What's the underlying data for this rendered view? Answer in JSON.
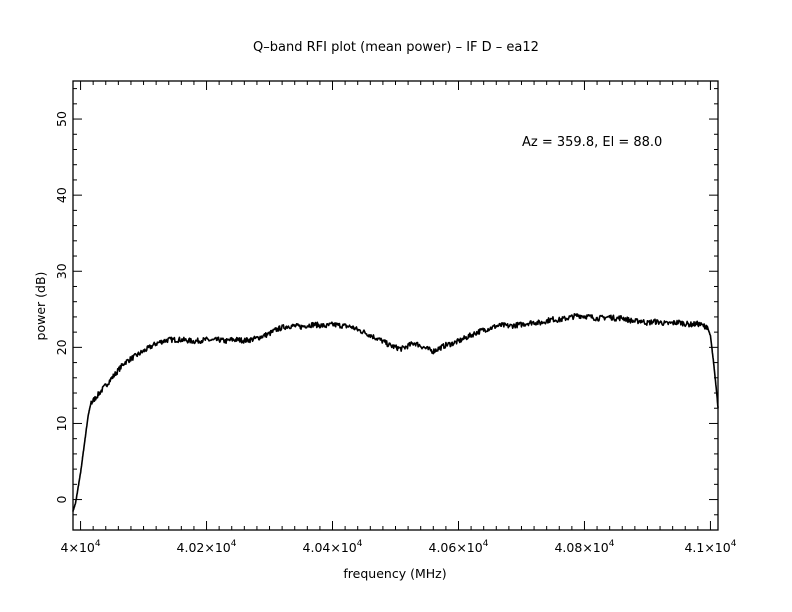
{
  "chart_data": {
    "type": "line",
    "title": "Q–band RFI plot (mean power) – IF D – ea12",
    "xlabel": "frequency (MHz)",
    "ylabel": "power (dB)",
    "annotation": "Az = 359.8, El = 88.0",
    "xlim": [
      39988,
      41012
    ],
    "ylim": [
      -4,
      55
    ],
    "grid": false,
    "xticks": [
      {
        "value": 40000,
        "mant": "4",
        "exp": "4"
      },
      {
        "value": 40200,
        "mant": "4.02",
        "exp": "4"
      },
      {
        "value": 40400,
        "mant": "4.04",
        "exp": "4"
      },
      {
        "value": 40600,
        "mant": "4.06",
        "exp": "4"
      },
      {
        "value": 40800,
        "mant": "4.08",
        "exp": "4"
      },
      {
        "value": 41000,
        "mant": "4.1",
        "exp": "4"
      }
    ],
    "yticks": [
      {
        "value": 0,
        "label": "0"
      },
      {
        "value": 10,
        "label": "10"
      },
      {
        "value": 20,
        "label": "20"
      },
      {
        "value": 30,
        "label": "30"
      },
      {
        "value": 40,
        "label": "40"
      },
      {
        "value": 50,
        "label": "50"
      }
    ],
    "series": [
      {
        "color": "#000000",
        "x": [
          39988,
          39992,
          39996,
          40000,
          40004,
          40008,
          40012,
          40016,
          40020,
          40030,
          40040,
          40050,
          40060,
          40070,
          40080,
          40090,
          40100,
          40110,
          40120,
          40130,
          40140,
          40150,
          40160,
          40170,
          40180,
          40190,
          40200,
          40210,
          40220,
          40230,
          40240,
          40250,
          40260,
          40270,
          40280,
          40290,
          40300,
          40310,
          40320,
          40330,
          40340,
          40350,
          40360,
          40370,
          40380,
          40390,
          40400,
          40410,
          40420,
          40430,
          40440,
          40450,
          40460,
          40470,
          40480,
          40490,
          40500,
          40510,
          40520,
          40530,
          40540,
          40550,
          40560,
          40570,
          40580,
          40590,
          40600,
          40610,
          40620,
          40630,
          40640,
          40650,
          40660,
          40670,
          40680,
          40690,
          40700,
          40710,
          40720,
          40730,
          40740,
          40750,
          40760,
          40770,
          40780,
          40790,
          40800,
          40810,
          40820,
          40830,
          40840,
          40850,
          40860,
          40870,
          40880,
          40890,
          40900,
          40910,
          40920,
          40930,
          40940,
          40950,
          40960,
          40970,
          40980,
          40990,
          40995,
          41000,
          41005,
          41010,
          41012
        ],
        "y": [
          -1.5,
          -0.5,
          1.5,
          3.5,
          6,
          8.5,
          11,
          12.5,
          13,
          14,
          15,
          16,
          17,
          18,
          18.5,
          19,
          19.5,
          20,
          20.5,
          20.8,
          21,
          21,
          21,
          20.9,
          20.8,
          20.9,
          21,
          20.9,
          21,
          20.8,
          21,
          21,
          20.9,
          21,
          21.2,
          21.5,
          21.8,
          22.3,
          22.6,
          22.8,
          22.8,
          22.7,
          22.9,
          23,
          22.9,
          22.8,
          23,
          22.9,
          22.8,
          22.7,
          22.3,
          22,
          21.6,
          21.2,
          20.8,
          20.3,
          20,
          19.8,
          20.2,
          20.6,
          20.2,
          19.8,
          19.5,
          19.9,
          20.3,
          20.5,
          20.8,
          21.2,
          21.6,
          22,
          22.3,
          22.5,
          22.8,
          22.9,
          22.8,
          22.9,
          23,
          23.2,
          23.3,
          23.2,
          23.5,
          23.7,
          23.6,
          23.8,
          24,
          24.2,
          24.1,
          24,
          23.8,
          23.9,
          24,
          23.8,
          23.9,
          23.6,
          23.4,
          23.5,
          23.2,
          23.4,
          23.3,
          23.1,
          23.2,
          23.3,
          23.1,
          23,
          23.1,
          22.8,
          22.7,
          21.5,
          18,
          14,
          12
        ]
      }
    ]
  }
}
